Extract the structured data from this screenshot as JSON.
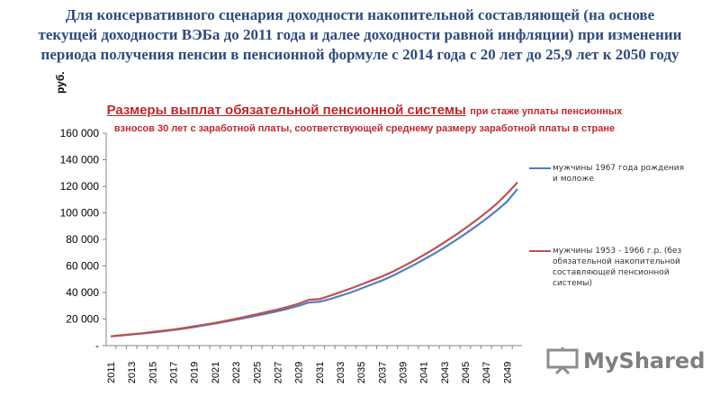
{
  "header": {
    "title": "Для консервативного сценария доходности накопительной составляющей (на основе текущей доходности ВЭБа до 2011 года и далее доходности равной инфляции) при изменении периода получения пенсии в пенсионной формуле с 2014 года с 20 лет до 25,9 лет к 2050 году"
  },
  "brand": {
    "name": "MyShared"
  },
  "chart_data": {
    "type": "line",
    "title": "Размеры выплат обязательной пенсионной системы",
    "subtitle": "при стаже уплаты пенсионных взносов 30 лет с заработной платы, соответствующей среднему размеру заработной платы в стране",
    "ylabel": "руб.",
    "xlabel": "",
    "ylim": [
      0,
      160000
    ],
    "y_ticks": [
      0,
      20000,
      40000,
      60000,
      80000,
      100000,
      120000,
      140000,
      160000
    ],
    "y_tick_labels": [
      "-",
      "20 000",
      "40 000",
      "60 000",
      "80 000",
      "100 000",
      "120 000",
      "140 000",
      "160 000"
    ],
    "x_tick_labels": [
      "2011",
      "2013",
      "2015",
      "2017",
      "2019",
      "2021",
      "2023",
      "2025",
      "2027",
      "2029",
      "2031",
      "2033",
      "2035",
      "2037",
      "2039",
      "2041",
      "2043",
      "2045",
      "2047",
      "2049"
    ],
    "grid": false,
    "legend_position": "right",
    "x": [
      2011,
      2012,
      2013,
      2014,
      2015,
      2016,
      2017,
      2018,
      2019,
      2020,
      2021,
      2022,
      2023,
      2024,
      2025,
      2026,
      2027,
      2028,
      2029,
      2030,
      2031,
      2032,
      2033,
      2034,
      2035,
      2036,
      2037,
      2038,
      2039,
      2040,
      2041,
      2042,
      2043,
      2044,
      2045,
      2046,
      2047,
      2048,
      2049,
      2050
    ],
    "series": [
      {
        "name": "мужчины 1967 года рождения и моложе",
        "color": "#4f81bd",
        "values": [
          7000,
          7600,
          8400,
          9000,
          9900,
          10800,
          11700,
          12800,
          14000,
          15300,
          16600,
          18000,
          19500,
          21000,
          22600,
          24200,
          25900,
          27800,
          30000,
          32500,
          33000,
          35000,
          37500,
          40000,
          43000,
          46000,
          49000,
          52500,
          56500,
          60500,
          64800,
          69200,
          74000,
          79000,
          84200,
          89700,
          95500,
          101700,
          108500,
          118000
        ]
      },
      {
        "name": "мужчины 1953 - 1966 г.р. (без обязательной накопительной составляющей пенсионной системы)",
        "color": "#c0504d",
        "values": [
          7000,
          7800,
          8600,
          9300,
          10300,
          11200,
          12100,
          13200,
          14500,
          15800,
          17100,
          18600,
          20200,
          21900,
          23600,
          25400,
          27200,
          29200,
          31500,
          34500,
          35000,
          37500,
          40200,
          43000,
          46000,
          49000,
          52000,
          55500,
          59500,
          63700,
          68200,
          72800,
          77800,
          83000,
          88500,
          94200,
          100200,
          106800,
          114500,
          123000
        ]
      }
    ]
  }
}
